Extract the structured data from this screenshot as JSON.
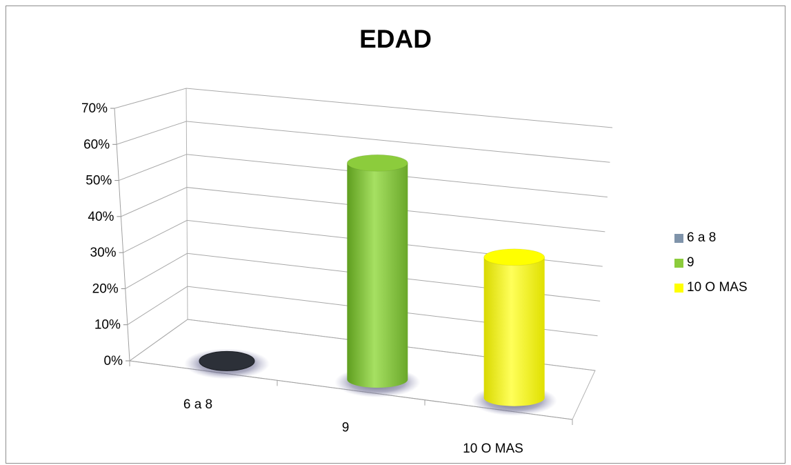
{
  "chart_data": {
    "type": "bar",
    "title": "EDAD",
    "xlabel": "",
    "ylabel": "",
    "categories": [
      "6 a 8",
      "9",
      "10 O MAS"
    ],
    "values": [
      0.01,
      0.6,
      0.39
    ],
    "colors": [
      "#3f4f6a",
      "#8ccc3c",
      "#ffff00"
    ],
    "ylim": [
      0,
      0.7
    ],
    "yticks": [
      0,
      0.1,
      0.2,
      0.3,
      0.4,
      0.5,
      0.6,
      0.7
    ],
    "ytick_labels": [
      "0%",
      "10%",
      "20%",
      "30%",
      "40%",
      "50%",
      "60%",
      "70%"
    ],
    "grid": true,
    "legend_position": "right",
    "legend": [
      {
        "label": "6 a 8",
        "color": "#7f93aa"
      },
      {
        "label": "9",
        "color": "#8ccc3c"
      },
      {
        "label": "10 O MAS",
        "color": "#ffff00"
      }
    ]
  }
}
